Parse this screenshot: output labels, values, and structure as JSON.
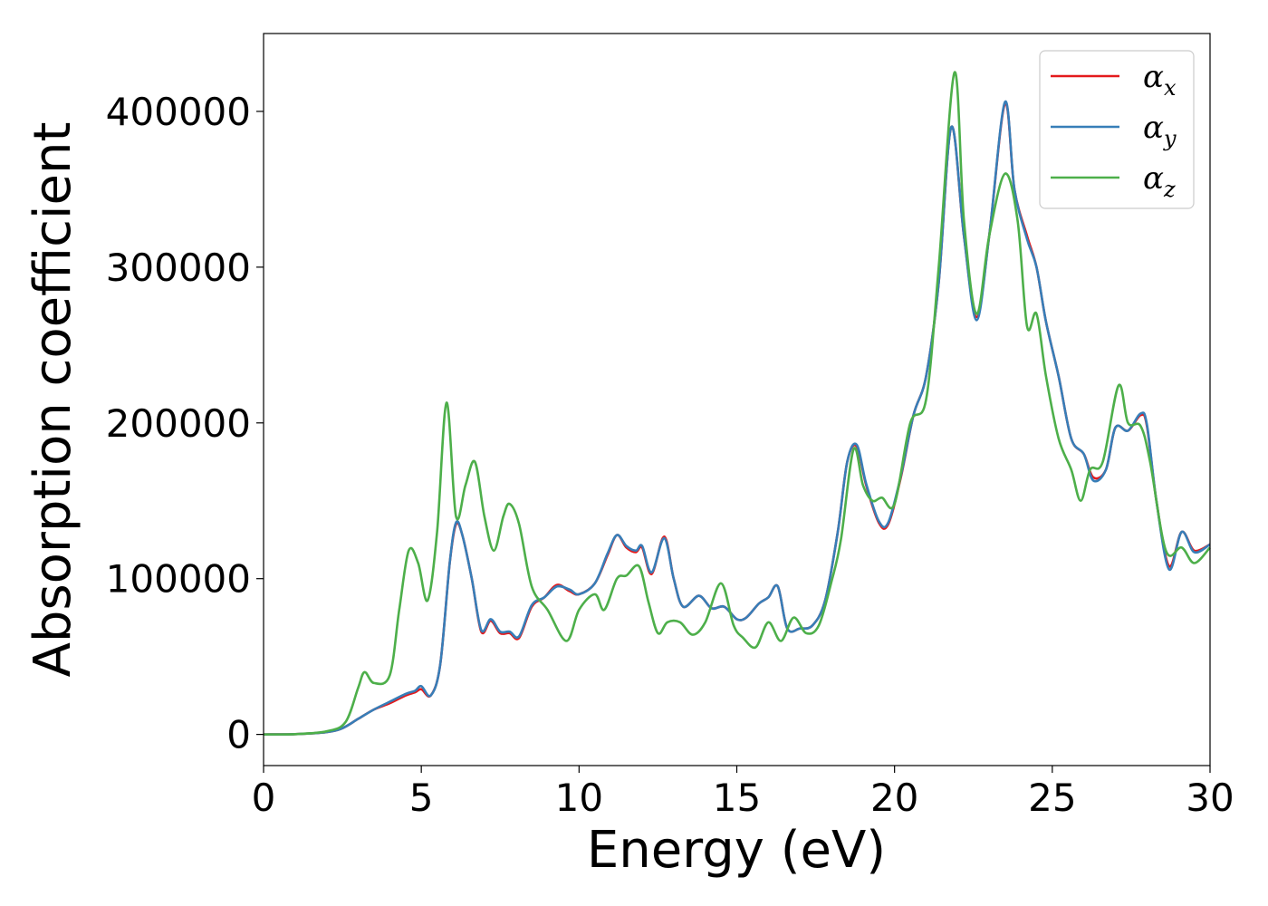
{
  "chart_data": {
    "type": "line",
    "xlabel": "Energy (eV)",
    "ylabel": "Absorption coefficient",
    "xlim": [
      0,
      30
    ],
    "ylim": [
      -20000,
      450000
    ],
    "xticks": [
      0,
      5,
      10,
      15,
      20,
      25,
      30
    ],
    "yticks": [
      0,
      100000,
      200000,
      300000,
      400000
    ],
    "grid": false,
    "legend_position": "top-right",
    "series": [
      {
        "name": "α_x",
        "symbol": "α",
        "subscript": "x",
        "color": "#e41a1c",
        "x": [
          0,
          1,
          2,
          2.5,
          3,
          3.5,
          4,
          4.5,
          4.8,
          5.0,
          5.3,
          5.6,
          5.9,
          6.1,
          6.3,
          6.6,
          6.9,
          7.2,
          7.5,
          7.8,
          8.1,
          8.5,
          8.9,
          9.3,
          9.7,
          10.0,
          10.5,
          10.9,
          11.2,
          11.5,
          11.8,
          12.0,
          12.3,
          12.7,
          13.0,
          13.3,
          13.8,
          14.2,
          14.6,
          15.0,
          15.3,
          15.7,
          16.0,
          16.3,
          16.6,
          17.0,
          17.4,
          17.8,
          18.2,
          18.5,
          18.8,
          19.1,
          19.5,
          19.8,
          20.2,
          20.6,
          21.0,
          21.4,
          21.8,
          22.2,
          22.6,
          23.0,
          23.5,
          23.8,
          24.2,
          24.5,
          24.8,
          25.2,
          25.6,
          26.0,
          26.3,
          26.7,
          27.0,
          27.4,
          27.8,
          28.0,
          28.3,
          28.7,
          29.1,
          29.5,
          30.0
        ],
        "values": [
          0,
          200,
          1500,
          4000,
          10000,
          16000,
          20000,
          25000,
          27000,
          29000,
          25000,
          45000,
          110000,
          135000,
          128000,
          100000,
          66000,
          73000,
          65000,
          65000,
          62000,
          82000,
          88000,
          96000,
          92000,
          90000,
          97000,
          115000,
          128000,
          120000,
          117000,
          120000,
          103000,
          127000,
          100000,
          82000,
          89000,
          81000,
          82000,
          74000,
          75000,
          84000,
          88000,
          95000,
          68000,
          68000,
          70000,
          86000,
          130000,
          175000,
          185000,
          160000,
          136000,
          135000,
          165000,
          205000,
          230000,
          290000,
          390000,
          320000,
          268000,
          320000,
          405000,
          350000,
          320000,
          300000,
          265000,
          230000,
          190000,
          180000,
          165000,
          170000,
          197000,
          195000,
          205000,
          198000,
          150000,
          108000,
          130000,
          118000,
          122000
        ]
      },
      {
        "name": "α_y",
        "symbol": "α",
        "subscript": "y",
        "color": "#377eb8",
        "x": [
          0,
          1,
          2,
          2.5,
          3,
          3.5,
          4,
          4.5,
          4.8,
          5.0,
          5.3,
          5.6,
          5.9,
          6.1,
          6.3,
          6.6,
          6.9,
          7.2,
          7.5,
          7.8,
          8.1,
          8.5,
          8.9,
          9.3,
          9.7,
          10.0,
          10.5,
          10.9,
          11.2,
          11.5,
          11.8,
          12.0,
          12.3,
          12.7,
          13.0,
          13.3,
          13.8,
          14.2,
          14.6,
          15.0,
          15.3,
          15.7,
          16.0,
          16.3,
          16.6,
          17.0,
          17.4,
          17.8,
          18.2,
          18.5,
          18.8,
          19.1,
          19.5,
          19.8,
          20.2,
          20.6,
          21.0,
          21.4,
          21.8,
          22.2,
          22.6,
          23.0,
          23.5,
          23.8,
          24.2,
          24.5,
          24.8,
          25.2,
          25.6,
          26.0,
          26.3,
          26.7,
          27.0,
          27.4,
          27.8,
          28.0,
          28.3,
          28.7,
          29.1,
          29.5,
          30.0
        ],
        "values": [
          0,
          200,
          1500,
          4000,
          10000,
          16000,
          21000,
          26000,
          28000,
          31000,
          25000,
          45000,
          110000,
          136000,
          128000,
          100000,
          67000,
          74000,
          66000,
          66000,
          63000,
          83000,
          88000,
          95000,
          93000,
          90000,
          97000,
          116000,
          128000,
          121000,
          118000,
          121000,
          104000,
          126000,
          100000,
          82000,
          89000,
          81000,
          82000,
          74000,
          75000,
          84000,
          88000,
          95000,
          68000,
          68000,
          70000,
          86000,
          130000,
          175000,
          186000,
          161000,
          137000,
          136000,
          166000,
          205000,
          230000,
          290000,
          390000,
          320000,
          266000,
          320000,
          406000,
          350000,
          318000,
          300000,
          265000,
          230000,
          190000,
          180000,
          163000,
          170000,
          197000,
          195000,
          206000,
          199000,
          150000,
          106000,
          130000,
          117000,
          122000
        ]
      },
      {
        "name": "α_z",
        "symbol": "α",
        "subscript": "z",
        "color": "#4daf4a",
        "x": [
          0,
          1,
          2,
          2.6,
          3.0,
          3.2,
          3.5,
          4.0,
          4.3,
          4.6,
          4.9,
          5.2,
          5.5,
          5.8,
          6.1,
          6.4,
          6.7,
          7.0,
          7.3,
          7.6,
          7.8,
          8.1,
          8.5,
          9.0,
          9.6,
          10.0,
          10.5,
          10.8,
          11.2,
          11.5,
          11.9,
          12.2,
          12.5,
          12.8,
          13.2,
          13.6,
          14.0,
          14.5,
          14.9,
          15.2,
          15.6,
          16.0,
          16.4,
          16.8,
          17.2,
          17.6,
          18.0,
          18.3,
          18.7,
          19.0,
          19.3,
          19.6,
          20.0,
          20.5,
          21.0,
          21.4,
          21.9,
          22.2,
          22.6,
          23.0,
          23.5,
          23.9,
          24.2,
          24.5,
          24.8,
          25.2,
          25.6,
          25.9,
          26.2,
          26.6,
          27.1,
          27.4,
          27.8,
          28.1,
          28.6,
          29.1,
          29.5,
          30.0
        ],
        "values": [
          0,
          200,
          2000,
          8000,
          30000,
          40000,
          33000,
          38000,
          80000,
          118000,
          110000,
          86000,
          130000,
          213000,
          140000,
          160000,
          175000,
          140000,
          118000,
          140000,
          148000,
          135000,
          95000,
          80000,
          60000,
          80000,
          90000,
          80000,
          100000,
          102000,
          108000,
          85000,
          65000,
          72000,
          72000,
          64000,
          72000,
          97000,
          70000,
          62000,
          56000,
          72000,
          60000,
          75000,
          65000,
          70000,
          98000,
          125000,
          183000,
          160000,
          150000,
          152000,
          148000,
          200000,
          215000,
          300000,
          425000,
          330000,
          270000,
          320000,
          360000,
          330000,
          262000,
          270000,
          230000,
          190000,
          170000,
          150000,
          170000,
          175000,
          224000,
          200000,
          198000,
          175000,
          118000,
          120000,
          110000,
          120000
        ]
      }
    ]
  }
}
